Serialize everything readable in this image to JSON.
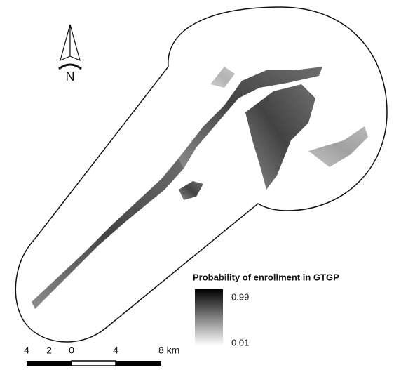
{
  "north_arrow": {
    "label": "N"
  },
  "legend": {
    "title": "Probability of enrollment in GTGP",
    "max_label": "0.99",
    "min_label": "0.01"
  },
  "scale_bar": {
    "labels": [
      "4",
      "2",
      "0",
      "4",
      "8 km"
    ]
  }
}
